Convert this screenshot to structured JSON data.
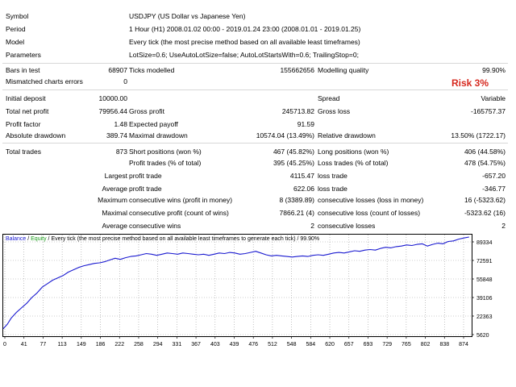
{
  "report": {
    "symbol_label": "Symbol",
    "symbol_value": "USDJPY (US Dollar vs Japanese Yen)",
    "period_label": "Period",
    "period_value": "1 Hour (H1) 2008.01.02 00:00 - 2019.01.24 23:00 (2008.01.01 - 2019.01.25)",
    "model_label": "Model",
    "model_value": "Every tick (the most precise method based on all available least timeframes)",
    "parameters_label": "Parameters",
    "parameters_value": "LotSize=0.6; UseAutoLotSize=false; AutoLotStartsWith=0.6; TrailingStop=0;",
    "bars_label": "Bars in test",
    "bars_value": "68907",
    "ticks_label": "Ticks modelled",
    "ticks_value": "155662656",
    "quality_label": "Modelling quality",
    "quality_value": "99.90%",
    "mismatch_label": "Mismatched charts errors",
    "mismatch_value": "0",
    "risk_label": "Risk 3%",
    "deposit_label": "Initial deposit",
    "deposit_value": "10000.00",
    "spread_label": "Spread",
    "spread_value": "Variable",
    "net_label": "Total net profit",
    "net_value": "79956.44",
    "gross_profit_label": "Gross profit",
    "gross_profit_value": "245713.82",
    "gross_loss_label": "Gross loss",
    "gross_loss_value": "-165757.37",
    "pf_label": "Profit factor",
    "pf_value": "1.48",
    "payoff_label": "Expected payoff",
    "payoff_value": "91.59",
    "abs_dd_label": "Absolute drawdown",
    "abs_dd_value": "389.74",
    "max_dd_label": "Maximal drawdown",
    "max_dd_value": "10574.04 (13.49%)",
    "rel_dd_label": "Relative drawdown",
    "rel_dd_value": "13.50% (1722.17)",
    "trades_label": "Total trades",
    "trades_value": "873",
    "short_label": "Short positions (won %)",
    "short_value": "467 (45.82%)",
    "long_label": "Long positions (won %)",
    "long_value": "406 (44.58%)",
    "ptrades_label": "Profit trades (% of total)",
    "ptrades_value": "395 (45.25%)",
    "ltrades_label": "Loss trades (% of total)",
    "ltrades_value": "478 (54.75%)",
    "largest_label": "Largest",
    "largest_pt_label": "profit trade",
    "largest_pt_value": "4115.47",
    "largest_lt_label": "loss trade",
    "largest_lt_value": "-657.20",
    "average_label": "Average",
    "average_pt_label": "profit trade",
    "average_pt_value": "622.06",
    "average_lt_label": "loss trade",
    "average_lt_value": "-346.77",
    "maximum_label": "Maximum",
    "max_cw_label": "consecutive wins (profit in money)",
    "max_cw_value": "8 (3389.89)",
    "max_cl_label": "consecutive losses (loss in money)",
    "max_cl_value": "16 (-5323.62)",
    "maximal_label": "Maximal",
    "maximal_cp_label": "consecutive profit (count of wins)",
    "maximal_cp_value": "7866.21 (4)",
    "maximal_cl_label": "consecutive loss (count of losses)",
    "maximal_cl_value": "-5323.62 (16)",
    "average2_label": "Average",
    "avg_cw_label": "consecutive wins",
    "avg_cw_value": "2",
    "avg_cl_label": "consecutive losses",
    "avg_cl_value": "2"
  },
  "chart_data": {
    "type": "line",
    "legend": [
      {
        "text": "Balance",
        "color": "#1a1ad0"
      },
      {
        "text": " / ",
        "color": "#000000"
      },
      {
        "text": "Equity",
        "color": "#1a9a1a"
      },
      {
        "text": " / Every tick (the most precise method based on all available least timeframes to generate each tick) / 99.90%",
        "color": "#000000"
      }
    ],
    "x_ticks": [
      "0",
      "41",
      "77",
      "113",
      "149",
      "186",
      "222",
      "258",
      "294",
      "331",
      "367",
      "403",
      "439",
      "476",
      "512",
      "548",
      "584",
      "620",
      "657",
      "693",
      "729",
      "765",
      "802",
      "838",
      "874"
    ],
    "y_ticks": [
      "89334",
      "72591",
      "55848",
      "39106",
      "22363",
      "5620"
    ],
    "xlim": [
      0,
      900
    ],
    "ylim": [
      5620,
      89334
    ],
    "series": [
      {
        "name": "Balance",
        "color": "#1a1ad0",
        "x": [
          0,
          8,
          15,
          25,
          35,
          45,
          55,
          65,
          75,
          85,
          95,
          105,
          115,
          125,
          135,
          145,
          155,
          165,
          175,
          185,
          195,
          205,
          215,
          225,
          235,
          245,
          255,
          265,
          275,
          285,
          295,
          305,
          315,
          325,
          335,
          345,
          355,
          365,
          375,
          385,
          395,
          405,
          415,
          425,
          435,
          445,
          455,
          465,
          475,
          485,
          495,
          505,
          515,
          525,
          535,
          545,
          555,
          565,
          575,
          585,
          595,
          605,
          615,
          625,
          635,
          645,
          655,
          665,
          675,
          685,
          695,
          705,
          715,
          725,
          735,
          745,
          755,
          765,
          775,
          785,
          795,
          805,
          815,
          825,
          835,
          845,
          855,
          865,
          875,
          885,
          895
        ],
        "y": [
          10000,
          14000,
          19000,
          24000,
          28000,
          32000,
          37000,
          41000,
          46000,
          49000,
          52000,
          54000,
          56000,
          59000,
          61000,
          63000,
          64500,
          65500,
          66500,
          67000,
          68000,
          69500,
          71000,
          70000,
          71500,
          72500,
          73000,
          74000,
          75000,
          74500,
          73500,
          74500,
          75500,
          75000,
          74500,
          75500,
          75000,
          74500,
          74000,
          74500,
          73500,
          74500,
          75500,
          75000,
          76000,
          75500,
          74500,
          75000,
          76000,
          77000,
          75500,
          74000,
          73000,
          73500,
          73000,
          72500,
          72000,
          72500,
          73000,
          72500,
          73500,
          74000,
          73500,
          74500,
          75500,
          76000,
          75500,
          76500,
          77500,
          77000,
          78000,
          78500,
          78000,
          79500,
          80500,
          80000,
          81000,
          81500,
          82500,
          82000,
          83000,
          83500,
          81500,
          83000,
          84000,
          83500,
          85500,
          86000,
          87500,
          88500,
          89334
        ]
      }
    ]
  }
}
